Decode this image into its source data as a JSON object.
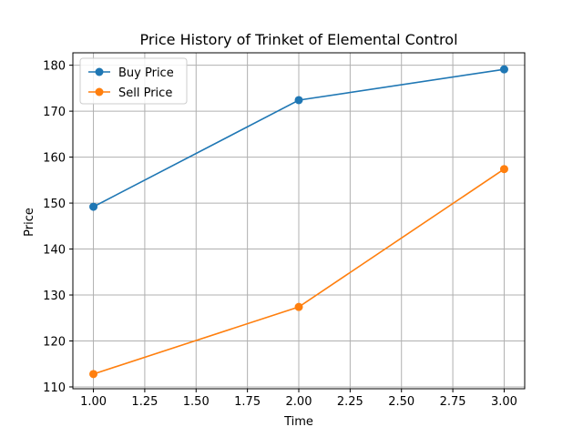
{
  "chart_data": {
    "type": "line",
    "title": "Price History of Trinket of Elemental Control",
    "xlabel": "Time",
    "ylabel": "Price",
    "xlim": [
      0.9,
      3.1
    ],
    "ylim": [
      109.6,
      182.7
    ],
    "xticks": [
      "1.00",
      "1.25",
      "1.50",
      "1.75",
      "2.00",
      "2.25",
      "2.50",
      "2.75",
      "3.00"
    ],
    "yticks": [
      "110",
      "120",
      "130",
      "140",
      "150",
      "160",
      "170",
      "180"
    ],
    "grid": true,
    "legend_position": "upper-left",
    "x": [
      1,
      2,
      3
    ],
    "series": [
      {
        "name": "Buy Price",
        "color": "#1f77b4",
        "values": [
          149.2,
          172.4,
          179.1
        ]
      },
      {
        "name": "Sell Price",
        "color": "#ff7f0e",
        "values": [
          112.8,
          127.4,
          157.4
        ]
      }
    ]
  }
}
